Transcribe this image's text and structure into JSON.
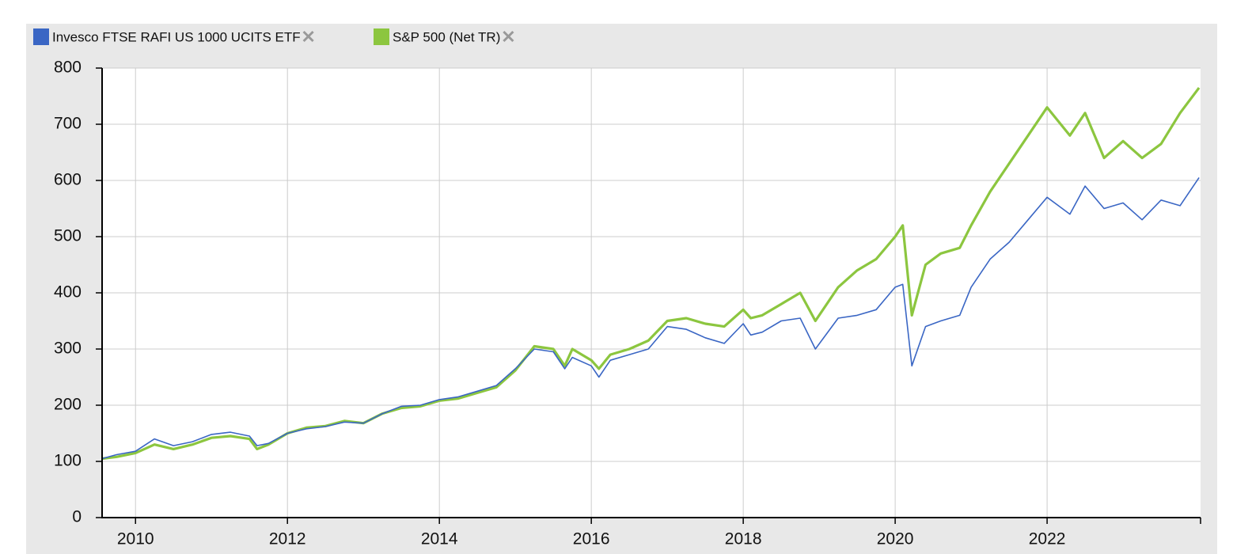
{
  "chart_data": {
    "type": "line",
    "x": [
      2009.56,
      2009.75,
      2010.0,
      2010.25,
      2010.5,
      2010.75,
      2011.0,
      2011.25,
      2011.5,
      2011.6,
      2011.75,
      2012.0,
      2012.25,
      2012.5,
      2012.75,
      2013.0,
      2013.25,
      2013.5,
      2013.75,
      2014.0,
      2014.25,
      2014.5,
      2014.75,
      2015.0,
      2015.25,
      2015.5,
      2015.65,
      2015.75,
      2016.0,
      2016.1,
      2016.25,
      2016.5,
      2016.75,
      2017.0,
      2017.25,
      2017.5,
      2017.75,
      2018.0,
      2018.1,
      2018.25,
      2018.5,
      2018.75,
      2018.95,
      2019.25,
      2019.5,
      2019.75,
      2020.0,
      2020.1,
      2020.22,
      2020.4,
      2020.6,
      2020.85,
      2021.0,
      2021.25,
      2021.5,
      2021.75,
      2022.0,
      2022.3,
      2022.5,
      2022.75,
      2023.0,
      2023.25,
      2023.5,
      2023.75,
      2024.0
    ],
    "series": [
      {
        "name": "Invesco FTSE RAFI US 1000 UCITS ETF",
        "color": "#3a66c4",
        "values": [
          105,
          112,
          118,
          140,
          128,
          135,
          148,
          152,
          145,
          128,
          132,
          150,
          158,
          162,
          170,
          168,
          185,
          198,
          200,
          210,
          215,
          225,
          235,
          265,
          300,
          295,
          265,
          285,
          270,
          250,
          280,
          290,
          300,
          340,
          335,
          320,
          310,
          345,
          325,
          330,
          350,
          355,
          300,
          355,
          360,
          370,
          410,
          415,
          270,
          340,
          350,
          360,
          410,
          460,
          490,
          530,
          570,
          540,
          590,
          550,
          560,
          530,
          565,
          555,
          605
        ]
      },
      {
        "name": "S&P 500 (Net TR)",
        "color": "#8cc63f",
        "values": [
          105,
          108,
          115,
          130,
          122,
          130,
          142,
          145,
          140,
          122,
          130,
          150,
          160,
          163,
          172,
          168,
          185,
          195,
          198,
          208,
          212,
          222,
          232,
          262,
          305,
          300,
          270,
          300,
          280,
          265,
          290,
          300,
          315,
          350,
          355,
          345,
          340,
          370,
          355,
          360,
          380,
          400,
          350,
          410,
          440,
          460,
          500,
          520,
          360,
          450,
          470,
          480,
          520,
          580,
          630,
          680,
          730,
          680,
          720,
          640,
          670,
          640,
          665,
          720,
          765
        ]
      }
    ],
    "xlim": [
      2009.56,
      2024.02
    ],
    "xticks": [
      2010,
      2012,
      2014,
      2016,
      2018,
      2020,
      2022
    ],
    "ylim": [
      0,
      800
    ],
    "yticks": [
      0,
      100,
      200,
      300,
      400,
      500,
      600,
      700,
      800
    ],
    "grid": true
  }
}
